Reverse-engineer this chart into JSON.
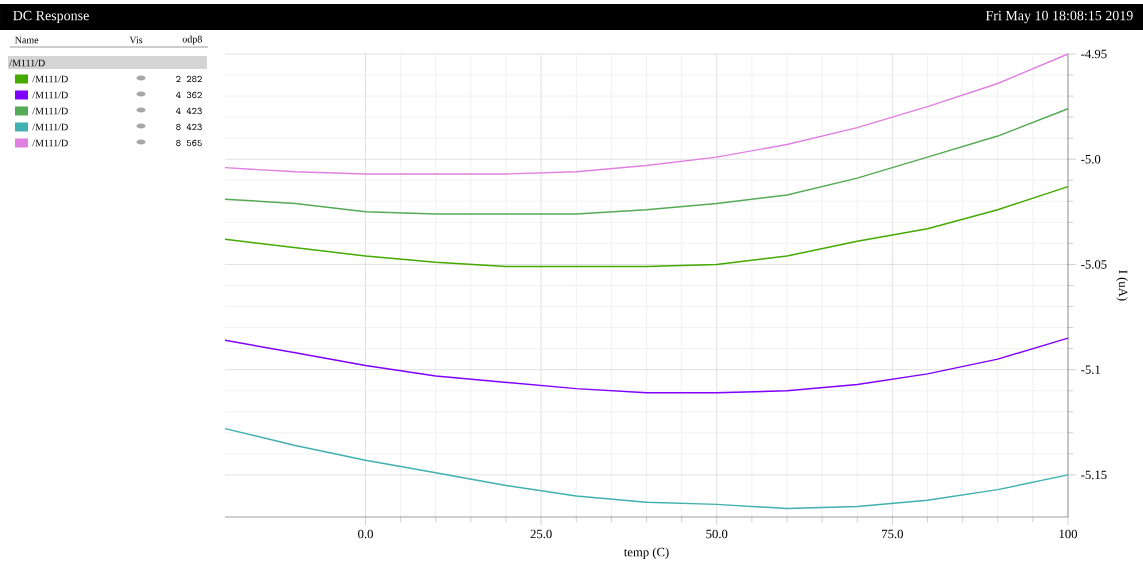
{
  "chart_data": {
    "type": "line",
    "title": "DC Response",
    "subtitle": "Fri May 10 18:08:15 2019",
    "xlabel": "temp (C)",
    "ylabel": "I (uA)",
    "legend_title": "/M111/D",
    "annotations": [
      "Name",
      "Vis",
      "odp8",
      "2 282",
      "4 362",
      "4 423",
      "8 423",
      "8 565"
    ],
    "x": [
      -20,
      -10,
      0,
      10,
      20,
      30,
      40,
      50,
      60,
      70,
      80,
      90,
      100
    ],
    "series": [
      {
        "name": "/M111/D",
        "color": "#44aa00",
        "values": [
          -5.038,
          -5.042,
          -5.046,
          -5.049,
          -5.051,
          -5.051,
          -5.051,
          -5.05,
          -5.046,
          -5.039,
          -5.033,
          -5.024,
          -5.013
        ]
      },
      {
        "name": "/M111/D",
        "color": "#8000ff",
        "values": [
          -5.086,
          -5.092,
          -5.098,
          -5.103,
          -5.106,
          -5.109,
          -5.111,
          -5.111,
          -5.11,
          -5.107,
          -5.102,
          -5.095,
          -5.085
        ]
      },
      {
        "name": "/M111/D",
        "color": "#55aa55",
        "values": [
          -5.019,
          -5.021,
          -5.025,
          -5.026,
          -5.026,
          -5.026,
          -5.024,
          -5.021,
          -5.017,
          -5.009,
          -4.999,
          -4.989,
          -4.976
        ]
      },
      {
        "name": "/M111/D",
        "color": "#40b0b0",
        "values": [
          -5.128,
          -5.136,
          -5.143,
          -5.149,
          -5.155,
          -5.16,
          -5.163,
          -5.164,
          -5.166,
          -5.165,
          -5.162,
          -5.157,
          -5.15
        ]
      },
      {
        "name": "/M111/D",
        "color": "#e080e0",
        "values": [
          -5.004,
          -5.006,
          -5.007,
          -5.007,
          -5.007,
          -5.006,
          -5.003,
          -4.999,
          -4.993,
          -4.985,
          -4.975,
          -4.964,
          -4.95
        ]
      }
    ],
    "xlim": [
      -20,
      100
    ],
    "ylim": [
      -5.17,
      -4.95
    ],
    "xticks": [
      {
        "value": 0,
        "label": "0.0"
      },
      {
        "value": 25,
        "label": "25.0"
      },
      {
        "value": 50,
        "label": "50.0"
      },
      {
        "value": 75,
        "label": "75.0"
      },
      100
    ],
    "yticks": [
      -5.15,
      {
        "value": -5.1,
        "label": "-5.1"
      },
      -5.05,
      {
        "value": -5.0,
        "label": "-5.0"
      },
      -4.95
    ],
    "grid": true,
    "legend": "top left",
    "marker": "none",
    "line_style": "solid"
  }
}
